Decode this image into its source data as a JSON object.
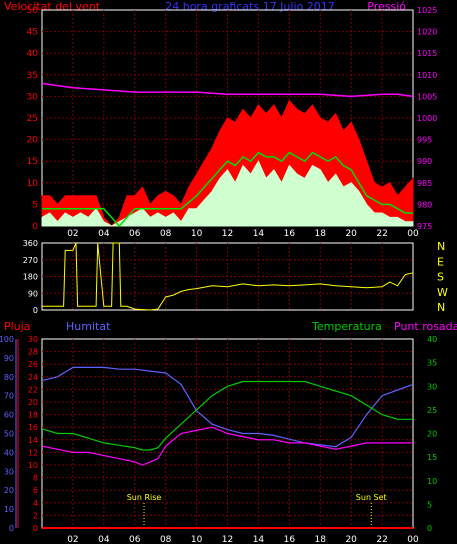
{
  "header": {
    "left_title": "Velocitat del vent",
    "center_title": "24 hora graficats 17 Julio 2017",
    "right_title": "Pressió"
  },
  "colors": {
    "background": "#000000",
    "frame": "#ffffff",
    "grid": "#800000",
    "wind_gust": "#ff0000",
    "wind_avg": "#00e000",
    "wind_speed": "#d0ffd0",
    "pressure": "#ff00ff",
    "direction": "#ffff00",
    "rain": "#ff0000",
    "humidity": "#6060ff",
    "temperature": "#00cc00",
    "dewpoint": "#ff00ff",
    "sun_marker": "#ffff00"
  },
  "chart_data": [
    {
      "id": "wind-pressure",
      "type": "line",
      "title": "24 hora graficats 17 Julio 2017",
      "ylabel_left": "Velocitat del vent",
      "ylabel_right": "Pressió",
      "x_ticks": [
        "02",
        "04",
        "06",
        "08",
        "10",
        "12",
        "14",
        "16",
        "18",
        "20",
        "22",
        "00"
      ],
      "x_range_hours": [
        0,
        24
      ],
      "y_left": {
        "range": [
          0,
          50
        ],
        "ticks": [
          0,
          5,
          10,
          15,
          20,
          25,
          30,
          35,
          40,
          45,
          50
        ]
      },
      "y_right": {
        "range": [
          975,
          1025
        ],
        "ticks": [
          975,
          980,
          985,
          990,
          995,
          1000,
          1005,
          1010,
          1015,
          1020,
          1025
        ]
      },
      "grid": true,
      "series": [
        {
          "key": "gust",
          "axis": "left",
          "color": "#ff0000",
          "x": [
            0,
            0.5,
            1,
            1.5,
            2,
            2.5,
            3,
            3.5,
            4,
            4.5,
            5,
            5.5,
            6,
            6.5,
            7,
            7.5,
            8,
            8.5,
            9,
            9.5,
            10,
            10.5,
            11,
            11.5,
            12,
            12.5,
            13,
            13.5,
            14,
            14.5,
            15,
            15.5,
            16,
            16.5,
            17,
            17.5,
            18,
            18.5,
            19,
            19.5,
            20,
            20.5,
            21,
            21.5,
            22,
            22.5,
            23,
            23.5,
            24
          ],
          "y": [
            7,
            7,
            5,
            7,
            7,
            7,
            7,
            7,
            2,
            0,
            2,
            7,
            7,
            9,
            5,
            7,
            8,
            7,
            5,
            9,
            12,
            15,
            18,
            22,
            25,
            24,
            27,
            25,
            28,
            26,
            28,
            25,
            29,
            27,
            26,
            28,
            25,
            24,
            26,
            22,
            24,
            20,
            15,
            10,
            9,
            10,
            7,
            9,
            11
          ]
        },
        {
          "key": "avg",
          "axis": "left",
          "color": "#00e000",
          "x": [
            0,
            1,
            2,
            3,
            4,
            5,
            6,
            7,
            8,
            9,
            10,
            10.5,
            11,
            11.5,
            12,
            12.5,
            13,
            13.5,
            14,
            14.5,
            15,
            15.5,
            16,
            16.5,
            17,
            17.5,
            18,
            18.5,
            19,
            19.5,
            20,
            20.5,
            21,
            21.5,
            22,
            22.5,
            23,
            23.5,
            24
          ],
          "y": [
            4,
            4,
            4,
            4,
            4,
            0,
            4,
            4,
            4,
            4,
            7,
            9,
            11,
            13,
            15,
            14,
            16,
            15,
            17,
            16,
            16,
            15,
            17,
            16,
            15,
            17,
            16,
            15,
            16,
            14,
            13,
            10,
            7,
            6,
            5,
            5,
            4,
            3,
            3
          ]
        },
        {
          "key": "speed",
          "axis": "left",
          "color": "#d0ffd0",
          "x": [
            0,
            0.5,
            1,
            1.5,
            2,
            2.5,
            3,
            3.5,
            4,
            4.5,
            5,
            5.5,
            6,
            6.5,
            7,
            7.5,
            8,
            8.5,
            9,
            9.5,
            10,
            10.5,
            11,
            11.5,
            12,
            12.5,
            13,
            13.5,
            14,
            14.5,
            15,
            15.5,
            16,
            16.5,
            17,
            17.5,
            18,
            18.5,
            19,
            19.5,
            20,
            20.5,
            21,
            21.5,
            22,
            22.5,
            23,
            23.5,
            24
          ],
          "y": [
            2,
            3,
            1,
            3,
            2,
            3,
            2,
            4,
            1,
            0,
            1,
            2,
            3,
            4,
            2,
            3,
            2,
            3,
            1,
            4,
            4,
            6,
            8,
            11,
            13,
            10,
            14,
            12,
            15,
            11,
            13,
            10,
            14,
            12,
            11,
            14,
            13,
            10,
            12,
            9,
            10,
            8,
            5,
            3,
            3,
            2,
            2,
            1,
            1
          ]
        },
        {
          "key": "pressure",
          "axis": "right",
          "color": "#ff00ff",
          "x": [
            0,
            2,
            4,
            6,
            8,
            10,
            12,
            14,
            16,
            18,
            20,
            22,
            23,
            24
          ],
          "y": [
            1008,
            1007,
            1006.5,
            1006,
            1006,
            1006,
            1005.5,
            1005.5,
            1005.5,
            1005.5,
            1005,
            1005.5,
            1005.5,
            1005
          ]
        }
      ]
    },
    {
      "id": "wind-direction",
      "type": "line",
      "x_ticks": [
        "02",
        "04",
        "06",
        "08",
        "10",
        "12",
        "14",
        "16",
        "18",
        "20",
        "22",
        "00"
      ],
      "x_range_hours": [
        0,
        24
      ],
      "y_left": {
        "range": [
          0,
          360
        ],
        "ticks": [
          0,
          90,
          180,
          270,
          360
        ]
      },
      "y_right_labels": [
        "N",
        "W",
        "S",
        "E",
        "N"
      ],
      "grid": true,
      "series": [
        {
          "key": "direction",
          "color": "#ffff00",
          "x": [
            0,
            1,
            1.4,
            1.5,
            2,
            2.2,
            2.3,
            3,
            3.5,
            3.6,
            4,
            4.5,
            4.6,
            5,
            5.1,
            5.5,
            6,
            7,
            7.5,
            8,
            8.5,
            9,
            9.5,
            10,
            11,
            12,
            13,
            14,
            15,
            16,
            17,
            18,
            19,
            20,
            21,
            22,
            22.5,
            23,
            23.5,
            24
          ],
          "y": [
            20,
            20,
            20,
            320,
            320,
            360,
            20,
            20,
            20,
            360,
            20,
            20,
            360,
            360,
            20,
            20,
            5,
            0,
            5,
            70,
            80,
            100,
            110,
            115,
            130,
            125,
            140,
            130,
            135,
            130,
            135,
            140,
            130,
            125,
            120,
            125,
            150,
            130,
            190,
            200
          ]
        }
      ]
    },
    {
      "id": "temp-humidity",
      "type": "line",
      "ylabel_left_1": "Pluja",
      "ylabel_left_2": "Humitat",
      "ylabel_right_1": "Temperatura",
      "ylabel_right_2": "Punt rosada",
      "x_ticks": [
        "02",
        "04",
        "06",
        "08",
        "10",
        "12",
        "14",
        "16",
        "18",
        "20",
        "22",
        "00"
      ],
      "x_range_hours": [
        0,
        24
      ],
      "y_rain": {
        "range": [
          0,
          100
        ],
        "ticks": [
          0,
          10,
          20,
          30,
          40,
          50,
          60,
          70,
          80,
          90,
          100
        ]
      },
      "y_humidity": {
        "range": [
          0,
          30
        ],
        "ticks": [
          0,
          2,
          4,
          6,
          8,
          10,
          12,
          14,
          16,
          18,
          20,
          22,
          24,
          26,
          28,
          30
        ]
      },
      "y_temp": {
        "range": [
          0,
          40
        ],
        "ticks": [
          0,
          5,
          10,
          15,
          20,
          25,
          30,
          35,
          40
        ]
      },
      "grid": true,
      "annotations": [
        {
          "label": "Sun Rise",
          "hour": 6.6
        },
        {
          "label": "Sun Set",
          "hour": 21.3
        }
      ],
      "series": [
        {
          "key": "humidity",
          "axis": "humidity",
          "color": "#6060ff",
          "x": [
            0,
            1,
            2,
            3,
            4,
            5,
            6,
            7,
            8,
            9,
            10,
            11,
            12,
            13,
            14,
            15,
            16,
            17,
            18,
            19,
            20,
            21,
            22,
            23,
            24
          ],
          "y": [
            78,
            80,
            85,
            85,
            85,
            84,
            84,
            83,
            82,
            76,
            62,
            55,
            52,
            50,
            50,
            49,
            47,
            45,
            44,
            43,
            48,
            60,
            70,
            73,
            76
          ]
        },
        {
          "key": "temperature",
          "axis": "temp",
          "color": "#00cc00",
          "x": [
            0,
            1,
            2,
            3,
            4,
            5,
            6,
            6.5,
            7,
            7.5,
            8,
            9,
            10,
            11,
            12,
            13,
            14,
            15,
            16,
            17,
            18,
            19,
            20,
            21,
            22,
            23,
            24
          ],
          "y": [
            21,
            20,
            20,
            19,
            18,
            17.5,
            17,
            16.5,
            16.5,
            17,
            19,
            22,
            25,
            28,
            30,
            31,
            31,
            31,
            31,
            31,
            30,
            29,
            28,
            26,
            24,
            23,
            23
          ]
        },
        {
          "key": "dewpoint",
          "axis": "humidity",
          "color": "#ff00ff",
          "x": [
            0,
            1,
            2,
            3,
            4,
            5,
            6,
            6.5,
            7,
            7.5,
            8,
            9,
            10,
            11,
            12,
            13,
            14,
            15,
            16,
            17,
            18,
            19,
            20,
            21,
            22,
            23,
            24
          ],
          "y": [
            13,
            12.5,
            12,
            12,
            11.5,
            11,
            10.5,
            10,
            10.5,
            11,
            13,
            15,
            15.5,
            16,
            15,
            14.5,
            14,
            14,
            13.5,
            13.5,
            13,
            12.5,
            13,
            13.5,
            13.5,
            13.5,
            13.5
          ]
        },
        {
          "key": "rain",
          "axis": "rain",
          "color": "#ff0000",
          "x": [
            0,
            24
          ],
          "y": [
            0,
            0
          ]
        }
      ]
    }
  ]
}
